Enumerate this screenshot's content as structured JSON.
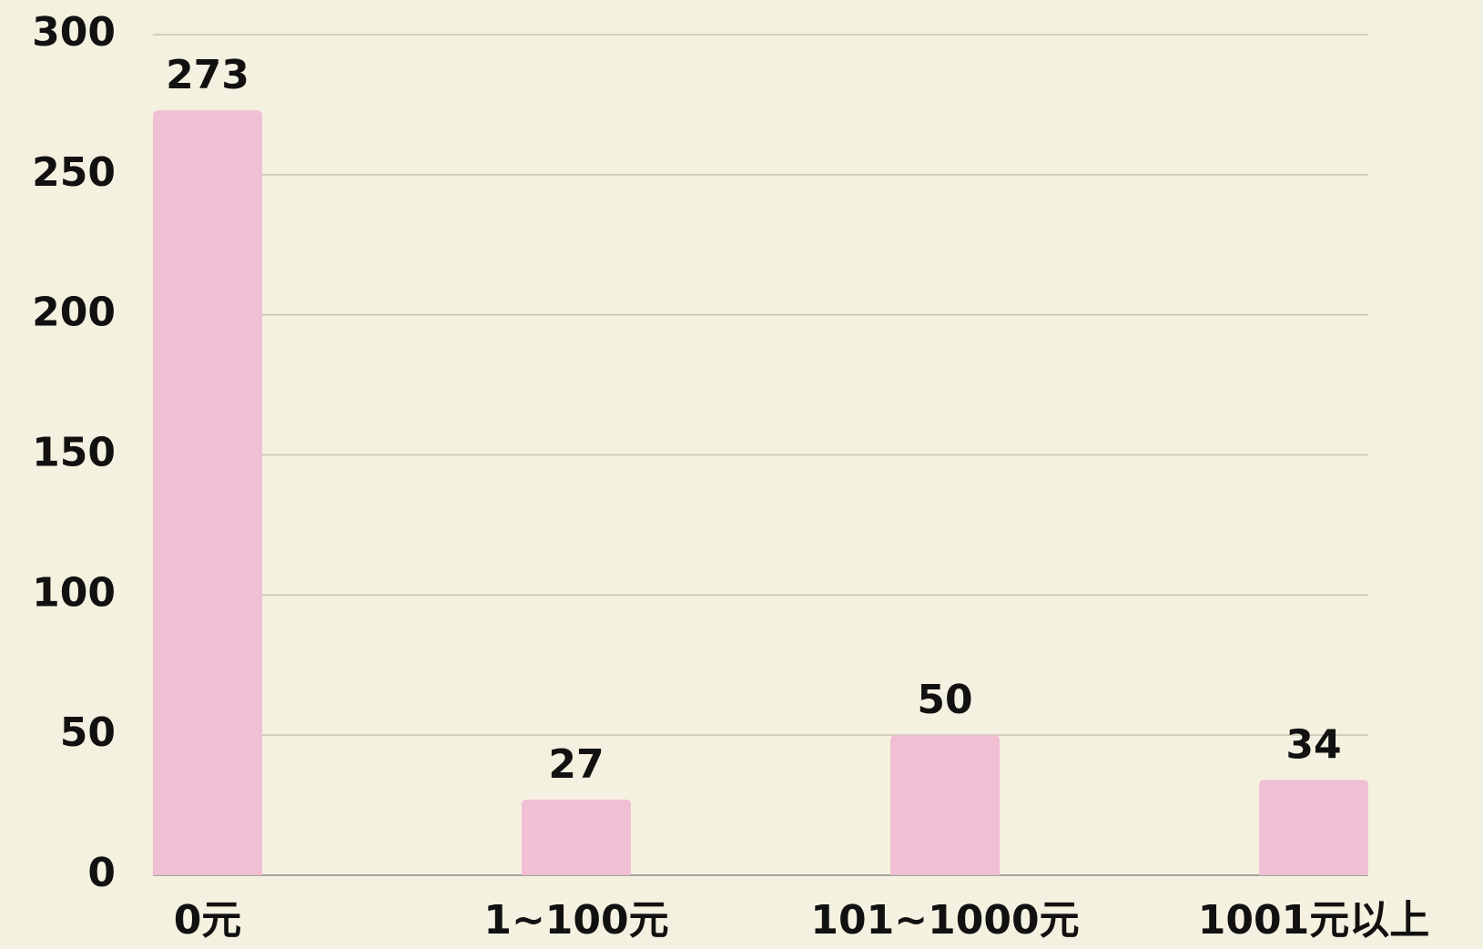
{
  "chart_data": {
    "type": "bar",
    "categories": [
      "0元",
      "1~100元",
      "101~1000元",
      "1001元以上"
    ],
    "values": [
      273,
      27,
      50,
      34
    ],
    "color": "#f0bfd3",
    "ylim": [
      0,
      300
    ],
    "yticks": [
      0,
      50,
      100,
      150,
      200,
      250,
      300
    ],
    "grid": true
  }
}
